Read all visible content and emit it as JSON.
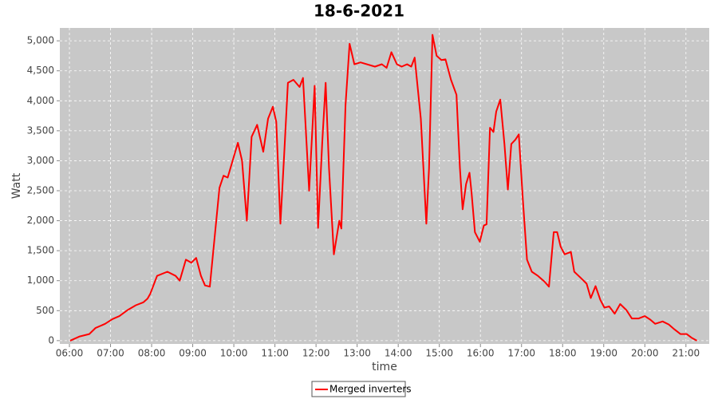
{
  "chart_data": {
    "type": "line",
    "title": "18-6-2021",
    "x_label": "time",
    "y_label": "Watt",
    "x": [
      "06:01",
      "06:15",
      "06:29",
      "06:38",
      "06:52",
      "07:03",
      "07:13",
      "07:25",
      "07:37",
      "07:48",
      "07:54",
      "07:58",
      "08:08",
      "08:23",
      "08:35",
      "08:41",
      "08:50",
      "08:58",
      "09:05",
      "09:12",
      "09:18",
      "09:25",
      "09:39",
      "09:45",
      "09:51",
      "10:06",
      "10:12",
      "10:19",
      "10:26",
      "10:34",
      "10:43",
      "10:50",
      "10:57",
      "11:02",
      "11:08",
      "11:13",
      "11:19",
      "11:27",
      "11:36",
      "11:41",
      "11:50",
      "11:58",
      "12:03",
      "12:09",
      "12:14",
      "12:19",
      "12:26",
      "12:34",
      "12:37",
      "12:43",
      "12:49",
      "12:56",
      "13:05",
      "13:26",
      "13:36",
      "13:43",
      "13:50",
      "13:58",
      "14:05",
      "14:13",
      "14:19",
      "14:24",
      "14:33",
      "14:41",
      "14:45",
      "14:50",
      "14:56",
      "15:03",
      "15:09",
      "15:17",
      "15:25",
      "15:30",
      "15:34",
      "15:39",
      "15:44",
      "15:47",
      "15:52",
      "15:59",
      "16:05",
      "16:09",
      "16:14",
      "16:19",
      "16:23",
      "16:29",
      "16:35",
      "16:40",
      "16:45",
      "16:51",
      "16:56",
      "17:02",
      "17:08",
      "17:15",
      "17:24",
      "17:33",
      "17:40",
      "17:47",
      "17:52",
      "17:57",
      "18:03",
      "18:12",
      "18:17",
      "18:27",
      "18:35",
      "18:41",
      "18:48",
      "18:55",
      "19:01",
      "19:08",
      "19:16",
      "19:24",
      "19:33",
      "19:41",
      "19:51",
      "20:00",
      "20:08",
      "20:15",
      "20:26",
      "20:35",
      "20:43",
      "20:52",
      "21:01",
      "21:08",
      "21:16"
    ],
    "series": [
      {
        "name": "Merged inverters",
        "color": "#ff0000",
        "values": [
          0,
          70,
          110,
          210,
          280,
          360,
          410,
          510,
          590,
          640,
          700,
          780,
          1080,
          1150,
          1080,
          1000,
          1350,
          1300,
          1380,
          1080,
          920,
          900,
          2550,
          2750,
          2720,
          3300,
          3000,
          2000,
          3400,
          3600,
          3150,
          3700,
          3900,
          3650,
          1950,
          3000,
          4300,
          4350,
          4230,
          4380,
          2500,
          4250,
          1880,
          3300,
          4300,
          2880,
          1440,
          2000,
          1870,
          3930,
          4950,
          4610,
          4640,
          4570,
          4610,
          4550,
          4810,
          4610,
          4570,
          4610,
          4570,
          4720,
          3700,
          1950,
          2880,
          5100,
          4750,
          4680,
          4690,
          4350,
          4100,
          2880,
          2190,
          2610,
          2800,
          2480,
          1810,
          1650,
          1920,
          1940,
          3550,
          3480,
          3820,
          4020,
          3280,
          2520,
          3280,
          3350,
          3440,
          2350,
          1350,
          1150,
          1080,
          990,
          900,
          1810,
          1810,
          1570,
          1440,
          1480,
          1150,
          1040,
          950,
          710,
          910,
          680,
          550,
          570,
          450,
          610,
          510,
          370,
          370,
          410,
          350,
          280,
          320,
          270,
          190,
          110,
          110,
          50,
          0
        ]
      }
    ],
    "xlim": [
      "05:46",
      "21:34"
    ],
    "xticks": [
      "06:00",
      "07:00",
      "08:00",
      "09:00",
      "10:00",
      "11:00",
      "12:00",
      "13:00",
      "14:00",
      "15:00",
      "16:00",
      "17:00",
      "18:00",
      "19:00",
      "20:00",
      "21:00"
    ],
    "ylim": [
      -55,
      5215
    ],
    "yticks": [
      0,
      500,
      {
        "value": 1000,
        "label": "1,000"
      },
      {
        "value": 1500,
        "label": "1,500"
      },
      {
        "value": 2000,
        "label": "2,000"
      },
      {
        "value": 2500,
        "label": "2,500"
      },
      {
        "value": 3000,
        "label": "3,000"
      },
      {
        "value": 3500,
        "label": "3,500"
      },
      {
        "value": 4000,
        "label": "4,000"
      },
      {
        "value": 4500,
        "label": "4,500"
      },
      {
        "value": 5000,
        "label": "5,000"
      }
    ],
    "grid": true
  }
}
